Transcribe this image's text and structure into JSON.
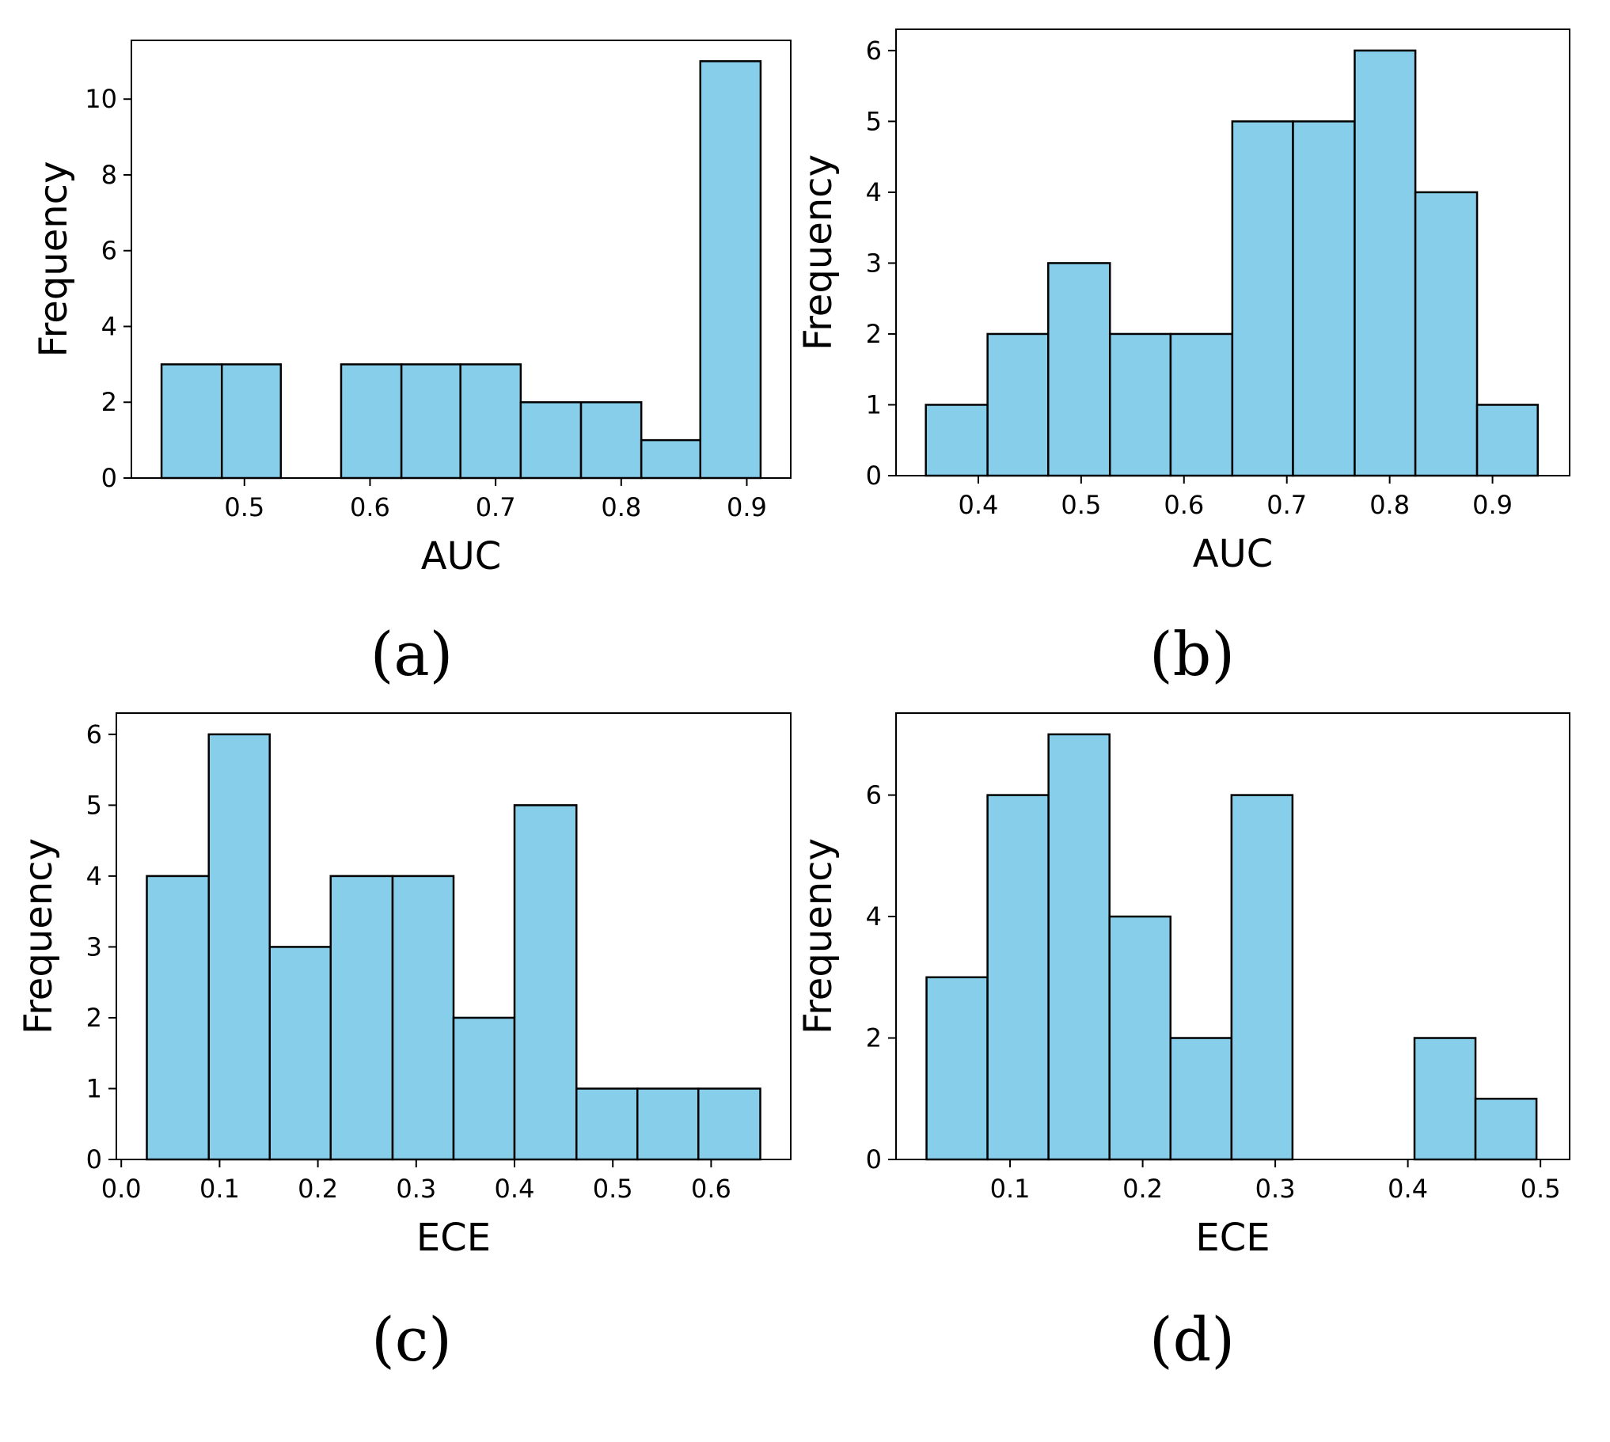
{
  "colors": {
    "bar_fill": "#87CEEB",
    "bar_edge": "#000000"
  },
  "captions": [
    "(a)",
    "(b)",
    "(c)",
    "(d)"
  ],
  "chart_data": [
    {
      "type": "bar",
      "caption": "(a)",
      "xlabel": "AUC",
      "ylabel": "Frequency",
      "xlim": [
        0.41,
        0.935
      ],
      "ylim": [
        0,
        11.55
      ],
      "xticks": [
        0.5,
        0.6,
        0.7,
        0.8,
        0.9
      ],
      "xtick_labels": [
        "0.5",
        "0.6",
        "0.7",
        "0.8",
        "0.9"
      ],
      "yticks": [
        0,
        2,
        4,
        6,
        8,
        10
      ],
      "ytick_labels": [
        "0",
        "2",
        "4",
        "6",
        "8",
        "10"
      ],
      "bin_edges": [
        0.434,
        0.482,
        0.529,
        0.577,
        0.625,
        0.672,
        0.72,
        0.768,
        0.816,
        0.863,
        0.911
      ],
      "counts": [
        3,
        3,
        0,
        3,
        3,
        3,
        2,
        2,
        1,
        11
      ]
    },
    {
      "type": "bar",
      "caption": "(b)",
      "xlabel": "AUC",
      "ylabel": "Frequency",
      "xlim": [
        0.32,
        0.975
      ],
      "ylim": [
        0,
        6.3
      ],
      "xticks": [
        0.4,
        0.5,
        0.6,
        0.7,
        0.8,
        0.9
      ],
      "xtick_labels": [
        "0.4",
        "0.5",
        "0.6",
        "0.7",
        "0.8",
        "0.9"
      ],
      "yticks": [
        0,
        1,
        2,
        3,
        4,
        5,
        6
      ],
      "ytick_labels": [
        "0",
        "1",
        "2",
        "3",
        "4",
        "5",
        "6"
      ],
      "bin_edges": [
        0.349,
        0.409,
        0.468,
        0.528,
        0.587,
        0.647,
        0.706,
        0.766,
        0.825,
        0.885,
        0.944
      ],
      "counts": [
        1,
        2,
        3,
        2,
        2,
        5,
        5,
        6,
        4,
        1
      ]
    },
    {
      "type": "bar",
      "caption": "(c)",
      "xlabel": "ECE",
      "ylabel": "Frequency",
      "xlim": [
        -0.005,
        0.681
      ],
      "ylim": [
        0,
        6.3
      ],
      "xticks": [
        0.0,
        0.1,
        0.2,
        0.3,
        0.4,
        0.5,
        0.6
      ],
      "xtick_labels": [
        "0.0",
        "0.1",
        "0.2",
        "0.3",
        "0.4",
        "0.5",
        "0.6"
      ],
      "yticks": [
        0,
        1,
        2,
        3,
        4,
        5,
        6
      ],
      "ytick_labels": [
        "0",
        "1",
        "2",
        "3",
        "4",
        "5",
        "6"
      ],
      "bin_edges": [
        0.026,
        0.089,
        0.151,
        0.213,
        0.276,
        0.338,
        0.4,
        0.463,
        0.525,
        0.587,
        0.65
      ],
      "counts": [
        4,
        6,
        3,
        4,
        4,
        2,
        5,
        1,
        1,
        1
      ]
    },
    {
      "type": "bar",
      "caption": "(d)",
      "xlabel": "ECE",
      "ylabel": "Frequency",
      "xlim": [
        0.014,
        0.522
      ],
      "ylim": [
        0,
        7.35
      ],
      "xticks": [
        0.1,
        0.2,
        0.3,
        0.4,
        0.5
      ],
      "xtick_labels": [
        "0.1",
        "0.2",
        "0.3",
        "0.4",
        "0.5"
      ],
      "yticks": [
        0,
        2,
        4,
        6
      ],
      "ytick_labels": [
        "0",
        "2",
        "4",
        "6"
      ],
      "bin_edges": [
        0.037,
        0.083,
        0.129,
        0.175,
        0.221,
        0.267,
        0.313,
        0.359,
        0.405,
        0.451,
        0.497
      ],
      "counts": [
        3,
        6,
        7,
        4,
        2,
        6,
        0,
        0,
        2,
        1
      ]
    }
  ]
}
